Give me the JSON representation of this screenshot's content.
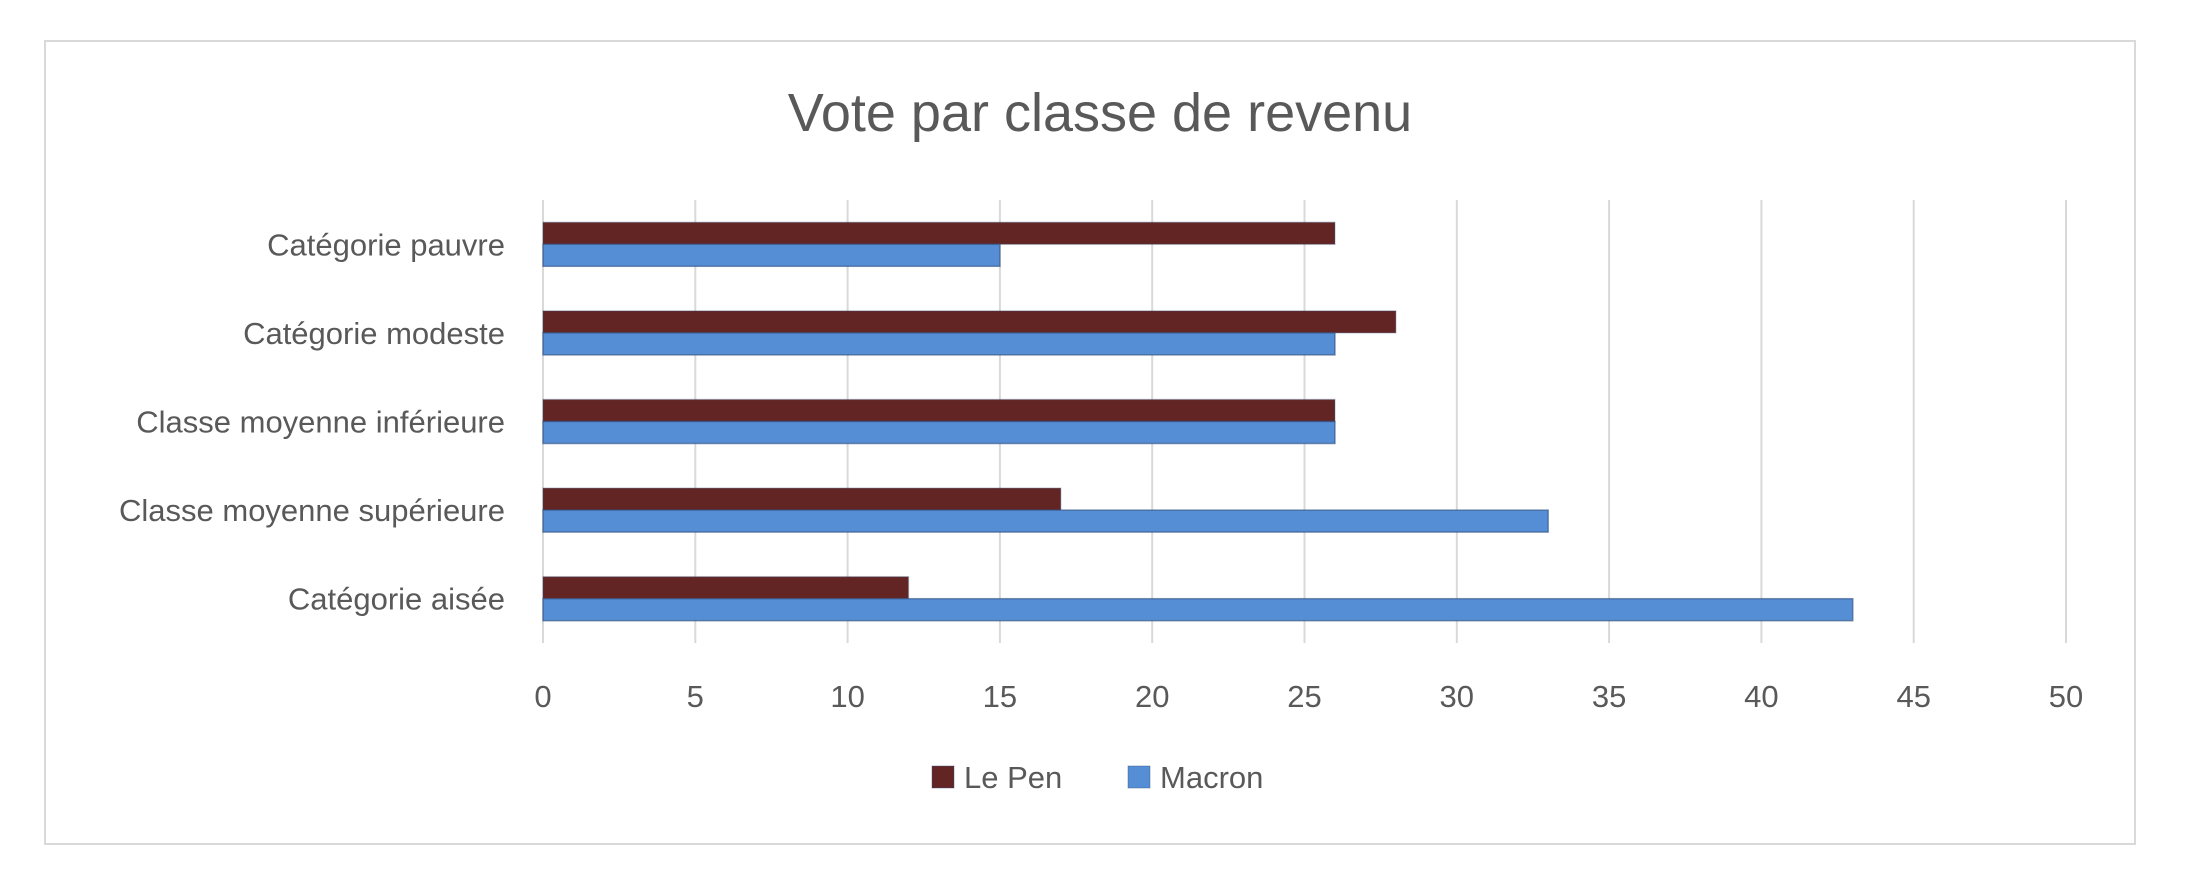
{
  "chart_data": {
    "type": "bar",
    "orientation": "horizontal",
    "title": "Vote par classe de revenu",
    "categories": [
      "Catégorie pauvre",
      "Catégorie modeste",
      "Classe moyenne inférieure",
      "Classe moyenne supérieure",
      "Catégorie aisée"
    ],
    "series": [
      {
        "name": "Le Pen",
        "values": [
          26,
          28,
          26,
          17,
          12
        ],
        "color": "#632523"
      },
      {
        "name": "Macron",
        "values": [
          15,
          26,
          26,
          33,
          43
        ],
        "color": "#558ed5"
      }
    ],
    "xlim": [
      0,
      50
    ],
    "xticks": [
      "0",
      "5",
      "10",
      "15",
      "20",
      "25",
      "30",
      "35",
      "40",
      "45",
      "50"
    ],
    "grid": "vertical",
    "legend_position": "bottom"
  }
}
